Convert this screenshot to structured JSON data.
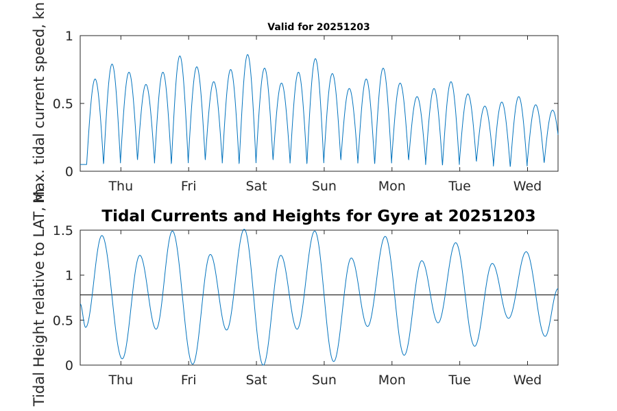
{
  "chart_data": [
    {
      "type": "line",
      "title": "Valid for 20251203",
      "ylabel": "Max. tidal current speed, kn",
      "xlabel": "",
      "x_ticks": [
        "Thu",
        "Fri",
        "Sat",
        "Sun",
        "Mon",
        "Tue",
        "Wed"
      ],
      "xlim_days": [
        -0.6,
        6.45
      ],
      "ylim": [
        0,
        1
      ],
      "y_ticks": [
        0,
        0.5,
        1
      ],
      "grid": false,
      "series": [
        {
          "color": "#0072BD",
          "peak_times_days": [
            -0.38,
            -0.13,
            0.12,
            0.37,
            0.62,
            0.87,
            1.12,
            1.37,
            1.62,
            1.87,
            2.12,
            2.37,
            2.62,
            2.87,
            3.12,
            3.37,
            3.62,
            3.87,
            4.12,
            4.37,
            4.62,
            4.87,
            5.12,
            5.37,
            5.62,
            5.87,
            6.12,
            6.37
          ],
          "peak_values": [
            0.68,
            0.79,
            0.73,
            0.64,
            0.73,
            0.85,
            0.77,
            0.66,
            0.75,
            0.86,
            0.76,
            0.65,
            0.73,
            0.83,
            0.72,
            0.61,
            0.68,
            0.76,
            0.65,
            0.55,
            0.61,
            0.66,
            0.57,
            0.48,
            0.51,
            0.55,
            0.49,
            0.45
          ],
          "trough_values": [
            0.05,
            0.05,
            0.08,
            0.08,
            0.05,
            0.05,
            0.08,
            0.08,
            0.05,
            0.05,
            0.08,
            0.08,
            0.05,
            0.05,
            0.08,
            0.08,
            0.05,
            0.05,
            0.08,
            0.08,
            0.04,
            0.04,
            0.07,
            0.07,
            0.03,
            0.03,
            0.06,
            0.06
          ]
        }
      ]
    },
    {
      "type": "line",
      "title": "Tidal Currents and Heights for Gyre at 20251203",
      "ylabel": "Tidal Height relative to LAT, m",
      "xlabel": "",
      "x_ticks": [
        "Thu",
        "Fri",
        "Sat",
        "Sun",
        "Mon",
        "Tue",
        "Wed"
      ],
      "xlim_days": [
        -0.6,
        6.45
      ],
      "ylim": [
        0,
        1.5
      ],
      "y_ticks": [
        0,
        0.5,
        1,
        1.5
      ],
      "grid": false,
      "reference_line": 0.78,
      "series": [
        {
          "color": "#0072BD",
          "extrema": [
            {
              "t": -0.6,
              "v": 0.68
            },
            {
              "t": -0.52,
              "v": 0.42
            },
            {
              "t": -0.28,
              "v": 1.44
            },
            {
              "t": 0.02,
              "v": 0.07
            },
            {
              "t": 0.28,
              "v": 1.22
            },
            {
              "t": 0.52,
              "v": 0.4
            },
            {
              "t": 0.76,
              "v": 1.49
            },
            {
              "t": 1.06,
              "v": 0.01
            },
            {
              "t": 1.32,
              "v": 1.23
            },
            {
              "t": 1.56,
              "v": 0.39
            },
            {
              "t": 1.82,
              "v": 1.51
            },
            {
              "t": 2.1,
              "v": 0.0
            },
            {
              "t": 2.36,
              "v": 1.22
            },
            {
              "t": 2.6,
              "v": 0.4
            },
            {
              "t": 2.86,
              "v": 1.49
            },
            {
              "t": 3.14,
              "v": 0.04
            },
            {
              "t": 3.4,
              "v": 1.19
            },
            {
              "t": 3.64,
              "v": 0.43
            },
            {
              "t": 3.9,
              "v": 1.43
            },
            {
              "t": 4.18,
              "v": 0.11
            },
            {
              "t": 4.44,
              "v": 1.16
            },
            {
              "t": 4.68,
              "v": 0.47
            },
            {
              "t": 4.94,
              "v": 1.36
            },
            {
              "t": 5.22,
              "v": 0.21
            },
            {
              "t": 5.48,
              "v": 1.13
            },
            {
              "t": 5.72,
              "v": 0.52
            },
            {
              "t": 5.98,
              "v": 1.26
            },
            {
              "t": 6.26,
              "v": 0.32
            },
            {
              "t": 6.45,
              "v": 0.85
            }
          ]
        }
      ]
    }
  ]
}
